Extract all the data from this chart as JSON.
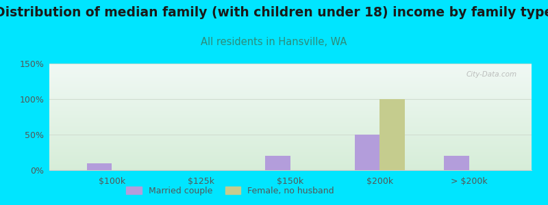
{
  "title": "Distribution of median family (with children under 18) income by family type",
  "subtitle": "All residents in Hansville, WA",
  "categories": [
    "$100k",
    "$125k",
    "$150k",
    "$200k",
    "> $200k"
  ],
  "married_couple": [
    10,
    0,
    20,
    50,
    20
  ],
  "female_no_husband": [
    0,
    0,
    0,
    100,
    0
  ],
  "married_color": "#b39ddb",
  "female_color": "#c5cc8e",
  "background_outer": "#00e5ff",
  "background_top": "#f0f8f4",
  "background_bottom": "#d6edd8",
  "ylim": [
    0,
    150
  ],
  "yticks": [
    0,
    50,
    100,
    150
  ],
  "ytick_labels": [
    "0%",
    "50%",
    "100%",
    "150%"
  ],
  "bar_width": 0.28,
  "title_fontsize": 13.5,
  "subtitle_fontsize": 10.5,
  "subtitle_color": "#2e8b7a",
  "watermark": "City-Data.com",
  "grid_color": "#d0ddd0",
  "spine_color": "#cccccc"
}
